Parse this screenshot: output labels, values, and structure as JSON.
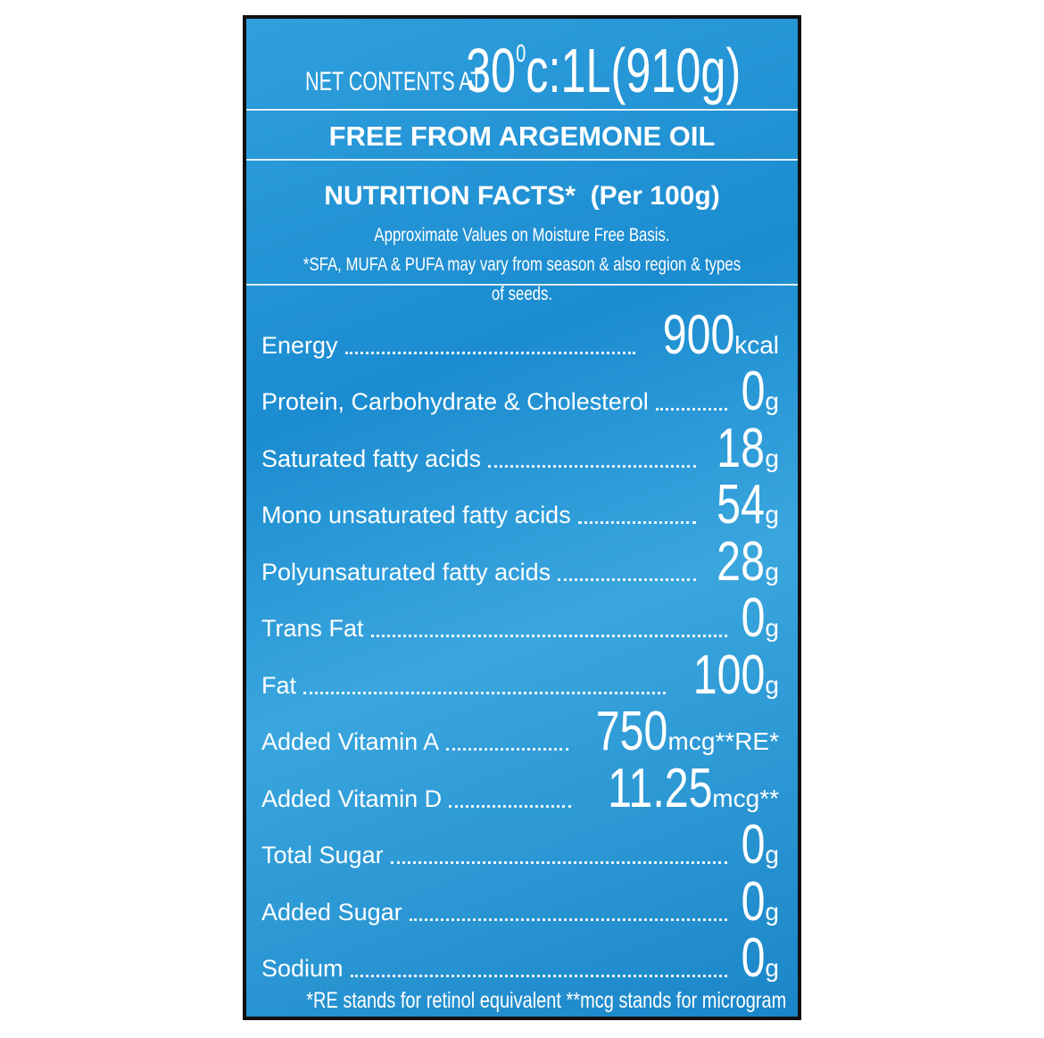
{
  "net_contents": {
    "label": "NET CONTENTS AT",
    "temperature": "30",
    "degree": "0",
    "volume": "c:1L(910g)"
  },
  "claim": "FREE FROM ARGEMONE OIL",
  "nutrition": {
    "title": "NUTRITION FACTS*",
    "per": "(Per 100g)",
    "note": "Approximate Values on Moisture Free Basis.",
    "note2": "*SFA, MUFA & PUFA may vary from season & also region & types of seeds.",
    "rows": [
      {
        "name": "Energy",
        "value": "900",
        "unit": "kcal"
      },
      {
        "name": "Protein, Carbohydrate & Cholesterol",
        "value": "0",
        "unit": "g"
      },
      {
        "name": "Saturated fatty acids",
        "value": "18",
        "unit": "g"
      },
      {
        "name": "Mono unsaturated fatty acids",
        "value": "54",
        "unit": "g"
      },
      {
        "name": "Polyunsaturated fatty acids",
        "value": "28",
        "unit": "g"
      },
      {
        "name": "Trans Fat",
        "value": "0",
        "unit": "g"
      },
      {
        "name": "Fat",
        "value": "100",
        "unit": "g"
      },
      {
        "name": "Added Vitamin A",
        "value": "750",
        "unit": "mcg**RE*"
      },
      {
        "name": "Added Vitamin D",
        "value": "11.25",
        "unit": "mcg**"
      },
      {
        "name": "Total Sugar",
        "value": "0",
        "unit": "g"
      },
      {
        "name": "Added Sugar",
        "value": "0",
        "unit": "g"
      },
      {
        "name": "Sodium",
        "value": "0",
        "unit": "g"
      }
    ]
  },
  "footnote": "*RE stands for retinol equivalent **mcg stands for microgram"
}
